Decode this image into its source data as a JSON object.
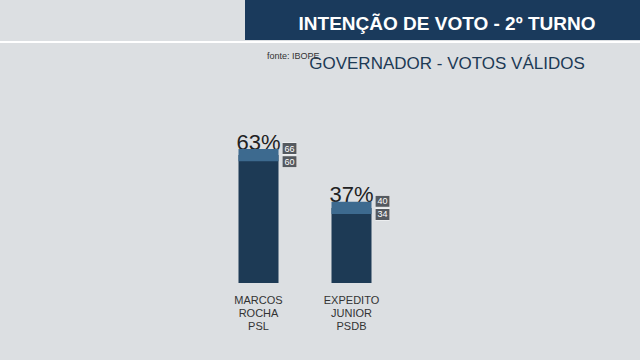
{
  "chart_data": {
    "type": "bar",
    "title": "INTENÇÃO DE VOTO - 2º TURNO",
    "subtitle": "GOVERNADOR - VOTOS VÁLIDOS",
    "source": "fonte: IBOPE",
    "categories": [
      "MARCOS\nROCHA\nPSL",
      "EXPEDITO\nJUNIOR\nPSDB"
    ],
    "values": [
      63,
      37
    ],
    "value_labels": [
      "63%",
      "37%"
    ],
    "upper": [
      66,
      40
    ],
    "lower": [
      60,
      34
    ],
    "color": "#1d3a55",
    "ylim": [
      0,
      100
    ],
    "tick_labels": "x",
    "grid": false,
    "data_labels": true
  }
}
